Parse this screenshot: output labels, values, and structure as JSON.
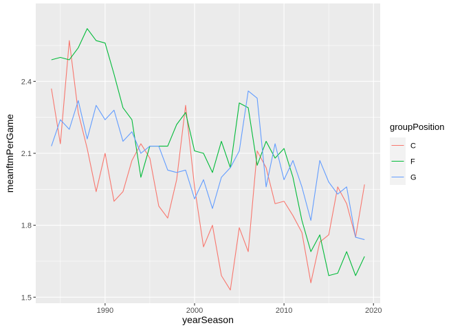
{
  "chart_data": {
    "type": "line",
    "xlabel": "yearSeason",
    "ylabel": "meanftmPerGame",
    "xlim": [
      1982.25,
      2020.75
    ],
    "ylim": [
      1.475,
      2.725
    ],
    "xticks": [
      1990,
      2000,
      2010,
      2020
    ],
    "xtick_labels": [
      "1990",
      "2000",
      "2010",
      "2020"
    ],
    "yticks": [
      1.5,
      1.8,
      2.1,
      2.4
    ],
    "ytick_labels": [
      "1.5",
      "1.8",
      "2.1",
      "2.4"
    ],
    "grid": true,
    "legend": {
      "title": "groupPosition",
      "position": "right"
    },
    "x": [
      1984,
      1985,
      1986,
      1987,
      1988,
      1989,
      1990,
      1991,
      1992,
      1993,
      1994,
      1995,
      1996,
      1997,
      1998,
      1999,
      2000,
      2001,
      2002,
      2003,
      2004,
      2005,
      2006,
      2007,
      2008,
      2009,
      2010,
      2011,
      2012,
      2013,
      2014,
      2015,
      2016,
      2017,
      2018,
      2019
    ],
    "series": [
      {
        "name": "C",
        "color": "#F8766D",
        "values": [
          2.37,
          2.14,
          2.57,
          2.27,
          2.12,
          1.94,
          2.1,
          1.9,
          1.94,
          2.07,
          2.14,
          2.08,
          1.88,
          1.83,
          1.99,
          2.3,
          1.96,
          1.71,
          1.8,
          1.59,
          1.53,
          1.79,
          1.69,
          2.11,
          2.04,
          1.89,
          1.9,
          1.84,
          1.77,
          1.56,
          1.73,
          1.76,
          1.96,
          1.89,
          1.75,
          1.97
        ]
      },
      {
        "name": "F",
        "color": "#00BA38",
        "values": [
          2.49,
          2.5,
          2.49,
          2.54,
          2.62,
          2.57,
          2.56,
          2.43,
          2.29,
          2.24,
          2.0,
          2.13,
          2.13,
          2.13,
          2.22,
          2.27,
          2.11,
          2.1,
          2.02,
          2.15,
          2.04,
          2.31,
          2.29,
          2.05,
          2.15,
          2.08,
          2.12,
          2.0,
          1.82,
          1.69,
          1.76,
          1.59,
          1.6,
          1.69,
          1.59,
          1.67
        ]
      },
      {
        "name": "G",
        "color": "#619CFF",
        "values": [
          2.13,
          2.24,
          2.2,
          2.32,
          2.16,
          2.3,
          2.24,
          2.28,
          2.15,
          2.19,
          2.1,
          2.13,
          2.13,
          2.03,
          2.02,
          2.03,
          1.91,
          1.99,
          1.87,
          2.0,
          2.04,
          2.11,
          2.36,
          2.33,
          1.96,
          2.14,
          1.99,
          2.07,
          1.96,
          1.82,
          2.07,
          1.98,
          1.93,
          1.96,
          1.75,
          1.74
        ]
      }
    ]
  }
}
